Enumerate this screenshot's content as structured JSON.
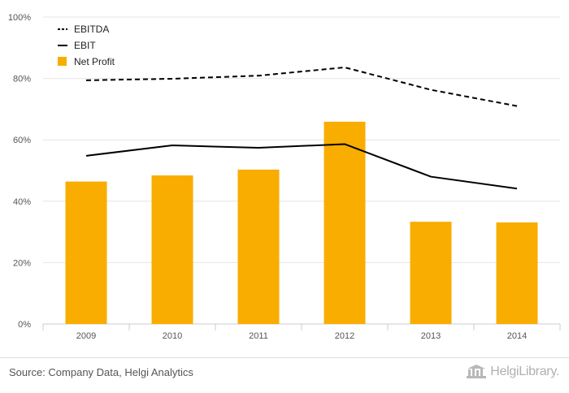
{
  "chart_data": {
    "type": "bar",
    "categories": [
      "2009",
      "2010",
      "2011",
      "2012",
      "2013",
      "2014"
    ],
    "series": [
      {
        "name": "Net Profit",
        "type": "bar",
        "color": "#f8ad00",
        "values": [
          46.4,
          48.4,
          50.3,
          65.9,
          33.3,
          33.1
        ]
      },
      {
        "name": "EBITDA",
        "type": "line",
        "style": "dashed",
        "color": "#000000",
        "values": [
          79.4,
          79.9,
          80.9,
          83.6,
          76.3,
          71.0
        ]
      },
      {
        "name": "EBIT",
        "type": "line",
        "style": "solid",
        "color": "#000000",
        "values": [
          54.8,
          58.2,
          57.4,
          58.6,
          48.0,
          44.1
        ]
      }
    ],
    "legend": [
      "EBITDA",
      "EBIT",
      "Net Profit"
    ],
    "legend_position": "top-left",
    "y_ticks": [
      "0%",
      "20%",
      "40%",
      "60%",
      "80%",
      "100%"
    ],
    "ylim": [
      0,
      100
    ],
    "grid": true,
    "title": "",
    "xlabel": "",
    "ylabel": ""
  },
  "footer": {
    "source": "Source: Company Data, Helgi Analytics",
    "brand": "HelgiLibrary."
  }
}
